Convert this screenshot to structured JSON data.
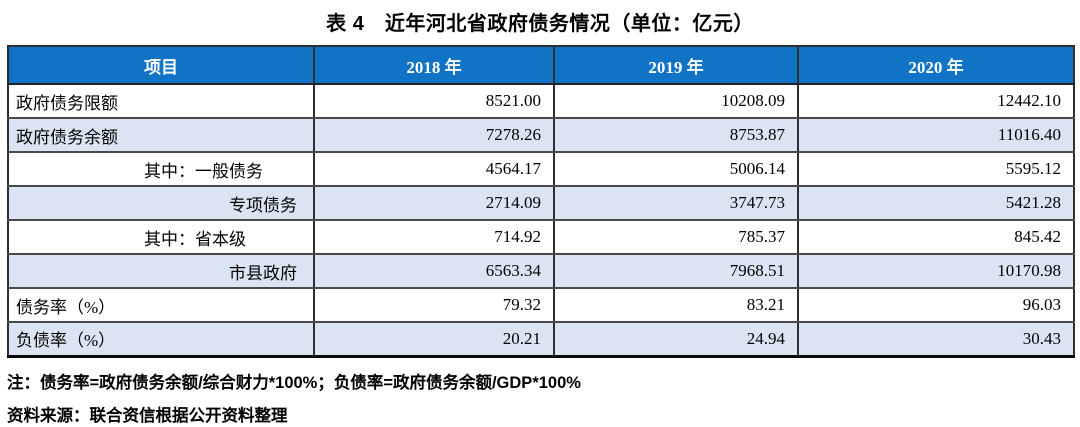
{
  "title": "表 4　近年河北省政府债务情况（单位：亿元）",
  "table": {
    "columns": [
      "项目",
      "2018 年",
      "2019 年",
      "2020 年"
    ],
    "rows": [
      {
        "label": "政府债务限额",
        "align": "left",
        "values": [
          "8521.00",
          "10208.09",
          "12442.10"
        ]
      },
      {
        "label": "政府债务余额",
        "align": "left",
        "values": [
          "7278.26",
          "8753.87",
          "11016.40"
        ]
      },
      {
        "label": "其中：一般债务",
        "align": "indent",
        "values": [
          "4564.17",
          "5006.14",
          "5595.12"
        ]
      },
      {
        "label": "专项债务",
        "align": "right",
        "values": [
          "2714.09",
          "3747.73",
          "5421.28"
        ]
      },
      {
        "label": "其中：省本级",
        "align": "indent",
        "values": [
          "714.92",
          "785.37",
          "845.42"
        ]
      },
      {
        "label": "市县政府",
        "align": "right",
        "values": [
          "6563.34",
          "7968.51",
          "10170.98"
        ]
      },
      {
        "label": "债务率（%）",
        "align": "left",
        "values": [
          "79.32",
          "83.21",
          "96.03"
        ]
      },
      {
        "label": "负债率（%）",
        "align": "left",
        "values": [
          "20.21",
          "24.94",
          "30.43"
        ]
      }
    ]
  },
  "note": "注：债务率=政府债务余额/综合财力*100%；负债率=政府债务余额/GDP*100%",
  "source": "资料来源：联合资信根据公开资料整理",
  "colors": {
    "header_bg": "#1173c5",
    "header_text": "#ffffff",
    "row_alt_bg": "#dbe4f2",
    "border": "#2e2e2e"
  }
}
